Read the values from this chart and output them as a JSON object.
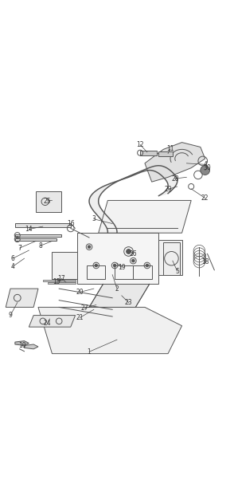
{
  "fig_width": 2.94,
  "fig_height": 6.31,
  "dpi": 100,
  "bg_color": "#ffffff",
  "line_color": "#555555",
  "line_width": 0.7
}
